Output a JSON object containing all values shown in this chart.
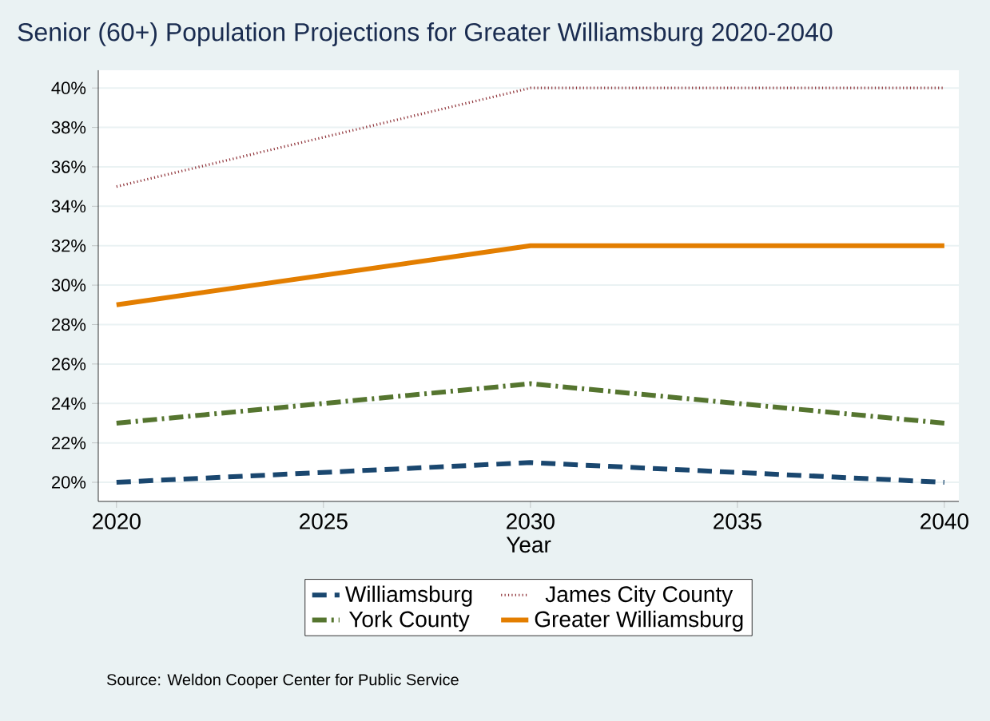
{
  "chart_data": {
    "type": "line",
    "title": "Senior (60+) Population Projections for Greater Williamsburg 2020-2040",
    "xlabel": "Year",
    "x": [
      2020,
      2025,
      2030,
      2035,
      2040
    ],
    "series": [
      {
        "name": "Williamsburg",
        "color": "#1a476f",
        "line_style": "dashed",
        "values": [
          20,
          20.5,
          21,
          20.5,
          20
        ]
      },
      {
        "name": "James City County",
        "color": "#90353b",
        "line_style": "dotted",
        "values": [
          35,
          37.5,
          40,
          40,
          40
        ]
      },
      {
        "name": "York County",
        "color": "#55752f",
        "line_style": "dashdot",
        "values": [
          23,
          24,
          25,
          24,
          23
        ]
      },
      {
        "name": "Greater Williamsburg",
        "color": "#e37e00",
        "line_style": "solid",
        "values": [
          29,
          30.5,
          32,
          32,
          32
        ]
      }
    ],
    "xlim": [
      2019.56,
      2040.35
    ],
    "ylim": [
      19.03,
      40.9
    ],
    "xticks": [
      2020,
      2025,
      2030,
      2035,
      2040
    ],
    "yticks": [
      {
        "value": 20,
        "label": "20%"
      },
      {
        "value": 22,
        "label": "22%"
      },
      {
        "value": 24,
        "label": "24%"
      },
      {
        "value": 26,
        "label": "26%"
      },
      {
        "value": 28,
        "label": "28%"
      },
      {
        "value": 30,
        "label": "30%"
      },
      {
        "value": 32,
        "label": "32%"
      },
      {
        "value": 34,
        "label": "34%"
      },
      {
        "value": 36,
        "label": "36%"
      },
      {
        "value": 38,
        "label": "38%"
      },
      {
        "value": 40,
        "label": "40%"
      }
    ],
    "grid": "y",
    "legend": "bottom",
    "marker": "none",
    "annotations": [
      "Source: Weldon Cooper Center for Public Service"
    ]
  }
}
